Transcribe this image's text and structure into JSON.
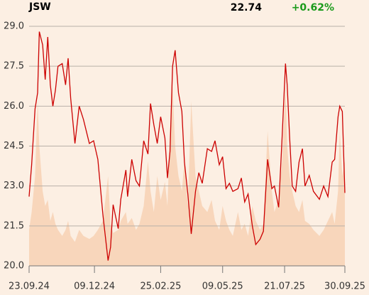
{
  "chart_data": {
    "type": "line",
    "title": "JSW",
    "last": 22.74,
    "change": {
      "value": 0.62,
      "label": "+0.62%"
    },
    "change_color": "#1a9a1a",
    "x": [
      "2024-09-23",
      "2024-09-26",
      "2024-09-30",
      "2024-10-03",
      "2024-10-05",
      "2024-10-09",
      "2024-10-12",
      "2024-10-15",
      "2024-10-18",
      "2024-10-21",
      "2024-10-24",
      "2024-10-27",
      "2024-11-01",
      "2024-11-05",
      "2024-11-08",
      "2024-11-11",
      "2024-11-16",
      "2024-11-21",
      "2024-11-26",
      "2024-12-03",
      "2024-12-08",
      "2024-12-13",
      "2024-12-19",
      "2024-12-25",
      "2024-12-28",
      "2024-12-31",
      "2025-01-06",
      "2025-01-09",
      "2025-01-15",
      "2025-01-17",
      "2025-01-22",
      "2025-01-27",
      "2025-01-31",
      "2025-02-05",
      "2025-02-10",
      "2025-02-13",
      "2025-02-17",
      "2025-02-21",
      "2025-02-25",
      "2025-03-02",
      "2025-03-05",
      "2025-03-08",
      "2025-03-11",
      "2025-03-14",
      "2025-03-18",
      "2025-03-22",
      "2025-03-25",
      "2025-03-29",
      "2025-04-02",
      "2025-04-07",
      "2025-04-11",
      "2025-04-15",
      "2025-04-21",
      "2025-04-26",
      "2025-04-30",
      "2025-05-05",
      "2025-05-09",
      "2025-05-13",
      "2025-05-17",
      "2025-05-21",
      "2025-05-27",
      "2025-05-31",
      "2025-06-04",
      "2025-06-08",
      "2025-06-13",
      "2025-06-17",
      "2025-06-22",
      "2025-06-26",
      "2025-07-01",
      "2025-07-06",
      "2025-07-09",
      "2025-07-14",
      "2025-07-18",
      "2025-07-22",
      "2025-07-24",
      "2025-07-27",
      "2025-07-30",
      "2025-08-03",
      "2025-08-07",
      "2025-08-11",
      "2025-08-14",
      "2025-08-19",
      "2025-08-24",
      "2025-08-31",
      "2025-09-05",
      "2025-09-10",
      "2025-09-15",
      "2025-09-18",
      "2025-09-22",
      "2025-09-24",
      "2025-09-27",
      "2025-09-30"
    ],
    "values": [
      22.6,
      23.8,
      25.9,
      26.5,
      28.8,
      28.3,
      27.0,
      28.6,
      26.8,
      26.0,
      26.6,
      27.5,
      27.6,
      26.8,
      27.8,
      26.3,
      24.6,
      26.0,
      25.5,
      24.6,
      24.7,
      24.0,
      21.9,
      20.2,
      20.7,
      22.3,
      21.4,
      22.5,
      23.6,
      22.6,
      24.0,
      23.2,
      23.0,
      24.7,
      24.2,
      26.1,
      25.3,
      24.6,
      25.6,
      24.8,
      23.3,
      24.3,
      27.5,
      28.1,
      26.5,
      25.8,
      23.9,
      22.7,
      21.2,
      22.8,
      23.5,
      23.1,
      24.4,
      24.3,
      24.7,
      23.8,
      24.1,
      22.9,
      23.1,
      22.8,
      22.9,
      23.3,
      22.4,
      22.7,
      21.5,
      20.8,
      21.0,
      21.3,
      24.0,
      22.9,
      23.0,
      22.2,
      24.8,
      27.6,
      26.8,
      24.8,
      23.0,
      22.8,
      23.9,
      24.4,
      23.0,
      23.4,
      22.8,
      22.5,
      23.0,
      22.6,
      23.9,
      24.0,
      25.6,
      26.0,
      25.8,
      22.74
    ],
    "color": "#cc0000",
    "volume": [
      12,
      18,
      30,
      55,
      40,
      25,
      20,
      22,
      15,
      18,
      14,
      12,
      10,
      12,
      15,
      10,
      8,
      12,
      10,
      9,
      10,
      12,
      15,
      30,
      14,
      11,
      12,
      15,
      18,
      14,
      16,
      12,
      14,
      20,
      35,
      25,
      18,
      30,
      22,
      28,
      20,
      45,
      60,
      40,
      30,
      25,
      35,
      20,
      55,
      30,
      25,
      20,
      18,
      22,
      15,
      12,
      20,
      15,
      12,
      10,
      18,
      12,
      14,
      10,
      20,
      15,
      12,
      14,
      45,
      25,
      18,
      22,
      35,
      60,
      40,
      30,
      25,
      20,
      18,
      22,
      15,
      14,
      12,
      10,
      12,
      15,
      18,
      14,
      25,
      45,
      30,
      35
    ],
    "volume_color": "#f8d6bb",
    "xlim": [
      "2024-09-23",
      "2025-09-30"
    ],
    "xticks": [
      {
        "value": "2024-09-23",
        "label": "23.09.24"
      },
      {
        "value": "2024-12-09",
        "label": "09.12.24"
      },
      {
        "value": "2025-02-25",
        "label": "25.02.25"
      },
      {
        "value": "2025-05-09",
        "label": "09.05.25"
      },
      {
        "value": "2025-07-21",
        "label": "21.07.25"
      },
      {
        "value": "2025-09-30",
        "label": "30.09.25"
      }
    ],
    "ylim": [
      20,
      29
    ],
    "yticks": [
      {
        "value": 20,
        "label": "20.0"
      },
      21.5,
      {
        "value": 23,
        "label": "23.0"
      },
      24.5,
      {
        "value": 26,
        "label": "26.0"
      },
      27.5,
      {
        "value": 29,
        "label": "29.0"
      }
    ],
    "grid": true
  }
}
